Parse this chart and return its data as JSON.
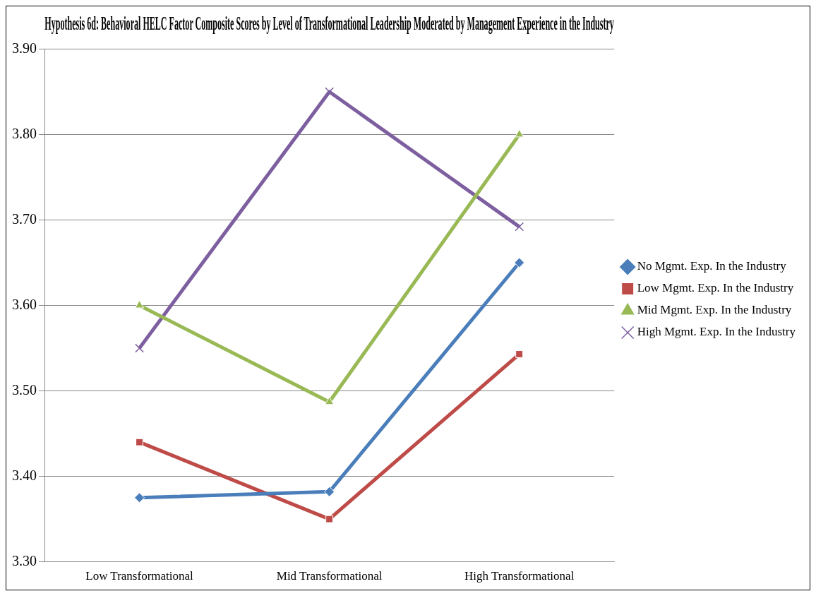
{
  "chart_data": {
    "type": "line",
    "title": "Hypothesis 6d: Behavioral HELC Factor Composite Scores by Level of Transformational Leadership Moderated by Management Experience in the Industry",
    "categories": [
      "Low Transformational",
      "Mid Transformational",
      "High Transformational"
    ],
    "series": [
      {
        "name": "No Mgmt. Exp. In the Industry",
        "color": "#4a7ebb",
        "marker": "diamond",
        "values": [
          3.375,
          3.382,
          3.65
        ]
      },
      {
        "name": "Low Mgmt. Exp. In the Industry",
        "color": "#be4b48",
        "marker": "square",
        "values": [
          3.44,
          3.35,
          3.543
        ]
      },
      {
        "name": "Mid Mgmt. Exp. In the Industry",
        "color": "#98b954",
        "marker": "triangle",
        "values": [
          3.6,
          3.487,
          3.8
        ]
      },
      {
        "name": "High Mgmt. Exp. In the Industry",
        "color": "#7d5fa0",
        "marker": "cross",
        "values": [
          3.55,
          3.85,
          3.692
        ]
      }
    ],
    "ylim": [
      3.3,
      3.9
    ],
    "yticks": [
      {
        "value": 3.3,
        "label": "3.30"
      },
      {
        "value": 3.4,
        "label": "3.40"
      },
      {
        "value": 3.5,
        "label": "3.50"
      },
      {
        "value": 3.6,
        "label": "3.60"
      },
      {
        "value": 3.7,
        "label": "3.70"
      },
      {
        "value": 3.8,
        "label": "3.80"
      },
      {
        "value": 3.9,
        "label": "3.90"
      }
    ],
    "grid": "y",
    "legend": "right"
  }
}
